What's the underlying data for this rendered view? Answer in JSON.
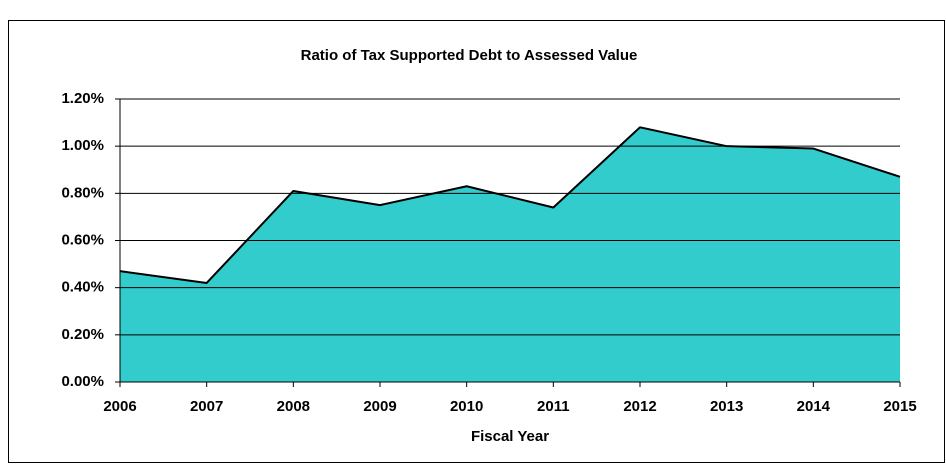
{
  "chart_data": {
    "type": "area",
    "title": "Ratio of Tax Supported Debt to Assessed Value",
    "x_label": "Fiscal Year",
    "categories": [
      "2006",
      "2007",
      "2008",
      "2009",
      "2010",
      "2011",
      "2012",
      "2013",
      "2014",
      "2015"
    ],
    "values": [
      0.47,
      0.42,
      0.81,
      0.75,
      0.83,
      0.74,
      1.08,
      1.0,
      0.99,
      0.87
    ],
    "color": "#33cccc",
    "line_color": "#000000",
    "ylim": [
      0,
      1.2
    ],
    "yticks": [
      {
        "value": 0,
        "label": "0.00%"
      },
      {
        "value": 0.2,
        "label": "0.20%"
      },
      {
        "value": 0.4,
        "label": "0.40%"
      },
      {
        "value": 0.6,
        "label": "0.60%"
      },
      {
        "value": 0.8,
        "label": "0.80%"
      },
      {
        "value": 1.0,
        "label": "1.00%"
      },
      {
        "value": 1.2,
        "label": "1.20%"
      }
    ],
    "grid": true
  }
}
